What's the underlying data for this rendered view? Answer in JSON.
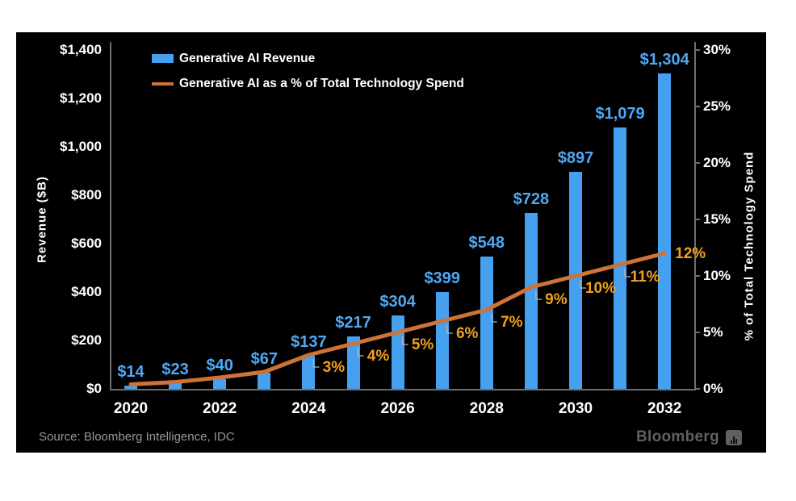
{
  "colors": {
    "panel_bg": "#000000",
    "page_bg": "#ffffff",
    "bar": "#45A1EF",
    "bar_label": "#4FA8F3",
    "line": "#CE7235",
    "pct_label": "#F0A11C",
    "axis": "#6e6e6e",
    "axis_text": "#ffffff",
    "connector": "#b5b5b5",
    "source_text": "#979797",
    "brand": "#606060"
  },
  "legend": {
    "items": [
      {
        "label": "Generative AI Revenue",
        "swatch": "bar"
      },
      {
        "label": "Generative AI as a % of Total Technology Spend",
        "swatch": "line"
      }
    ]
  },
  "chart_data": {
    "type": "combo",
    "categories": [
      2020,
      2021,
      2022,
      2023,
      2024,
      2025,
      2026,
      2027,
      2028,
      2029,
      2030,
      2031,
      2032
    ],
    "series": [
      {
        "name": "Generative AI Revenue",
        "type": "bar",
        "axis": "left",
        "values": [
          14,
          23,
          40,
          67,
          137,
          217,
          304,
          399,
          548,
          728,
          897,
          1079,
          1304
        ],
        "data_labels": [
          "$14",
          "$23",
          "$40",
          "$67",
          "$137",
          "$217",
          "$304",
          "$399",
          "$548",
          "$728",
          "$897",
          "$1,079",
          "$1,304"
        ]
      },
      {
        "name": "Generative AI as a % of Total Technology Spend",
        "type": "line",
        "axis": "right",
        "values": [
          0.4,
          0.6,
          1.0,
          1.5,
          3,
          4,
          5,
          6,
          7,
          9,
          10,
          11,
          12
        ],
        "data_labels": [
          "",
          "",
          "",
          "",
          "3%",
          "4%",
          "5%",
          "6%",
          "7%",
          "9%",
          "10%",
          "11%",
          "12%"
        ]
      }
    ],
    "left_axis": {
      "title": "Revenue ($B)",
      "min": 0,
      "max": 1400,
      "step": 200,
      "ticks": [
        "$0",
        "$200",
        "$400",
        "$600",
        "$800",
        "$1,000",
        "$1,200",
        "$1,400"
      ]
    },
    "right_axis": {
      "title": "% of Total Technology Spend",
      "min": 0,
      "max": 30,
      "step": 5,
      "ticks": [
        "0%",
        "5%",
        "10%",
        "15%",
        "20%",
        "25%",
        "30%"
      ]
    },
    "x_axis": {
      "tick_labels": [
        "2020",
        "2022",
        "2024",
        "2026",
        "2028",
        "2030",
        "2032"
      ]
    },
    "grid": false,
    "legend_position": "top-left"
  },
  "footer": {
    "source": "Source: Bloomberg Intelligence, IDC",
    "brand": "Bloomberg"
  }
}
